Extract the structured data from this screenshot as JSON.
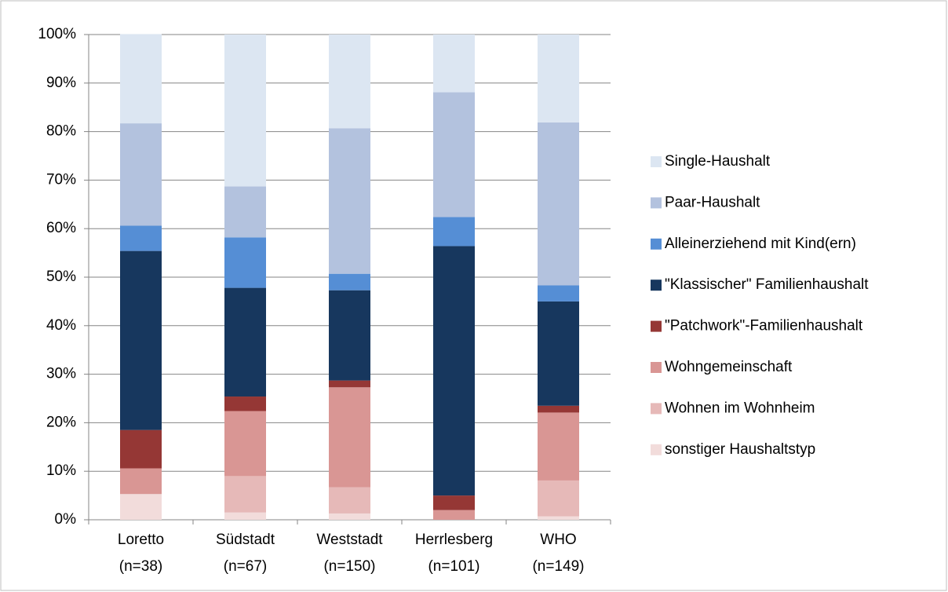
{
  "chart_data": {
    "type": "stacked_bar_percent",
    "categories": [
      "Loretto\n(n=38)",
      "Südstadt\n(n=67)",
      "Weststadt\n(n=150)",
      "Herrlesberg\n(n=101)",
      "WHO\n(n=149)"
    ],
    "series": [
      {
        "name": "sonstiger Haushaltstyp",
        "color": "#f2dcdb",
        "values": [
          5.3,
          1.5,
          1.3,
          0,
          0.7
        ]
      },
      {
        "name": "Wohnen im Wohnheim",
        "color": "#e6b9b8",
        "values": [
          0,
          7.5,
          5.4,
          0,
          7.4
        ]
      },
      {
        "name": "Wohngemeinschaft",
        "color": "#d99694",
        "values": [
          5.3,
          13.4,
          20.6,
          2.0,
          14.0
        ]
      },
      {
        "name": "\"Patchwork\"-Familienhaushalt",
        "color": "#953735",
        "values": [
          7.9,
          3.0,
          1.4,
          3.0,
          1.4
        ]
      },
      {
        "name": "\"Klassischer\" Familienhaushalt",
        "color": "#17375e",
        "values": [
          36.9,
          22.4,
          18.6,
          51.4,
          21.5
        ]
      },
      {
        "name": "Alleinerziehend mit Kind(ern)",
        "color": "#558ed5",
        "values": [
          5.2,
          10.4,
          3.4,
          6.0,
          3.3
        ]
      },
      {
        "name": "Paar-Haushalt",
        "color": "#b3c2de",
        "values": [
          21.1,
          10.5,
          30.0,
          25.7,
          33.6
        ]
      },
      {
        "name": "Single-Haushalt",
        "color": "#dce6f2",
        "values": [
          18.4,
          31.3,
          19.3,
          11.9,
          18.1
        ]
      }
    ],
    "ylim": [
      0,
      100
    ],
    "yticks": [
      {
        "value": 0,
        "label": "0%"
      },
      {
        "value": 10,
        "label": "10%"
      },
      {
        "value": 20,
        "label": "20%"
      },
      {
        "value": 30,
        "label": "30%"
      },
      {
        "value": 40,
        "label": "40%"
      },
      {
        "value": 50,
        "label": "50%"
      },
      {
        "value": 60,
        "label": "60%"
      },
      {
        "value": 70,
        "label": "70%"
      },
      {
        "value": 80,
        "label": "80%"
      },
      {
        "value": 90,
        "label": "90%"
      },
      {
        "value": 100,
        "label": "100%"
      }
    ],
    "grid": true,
    "legend": "right"
  }
}
